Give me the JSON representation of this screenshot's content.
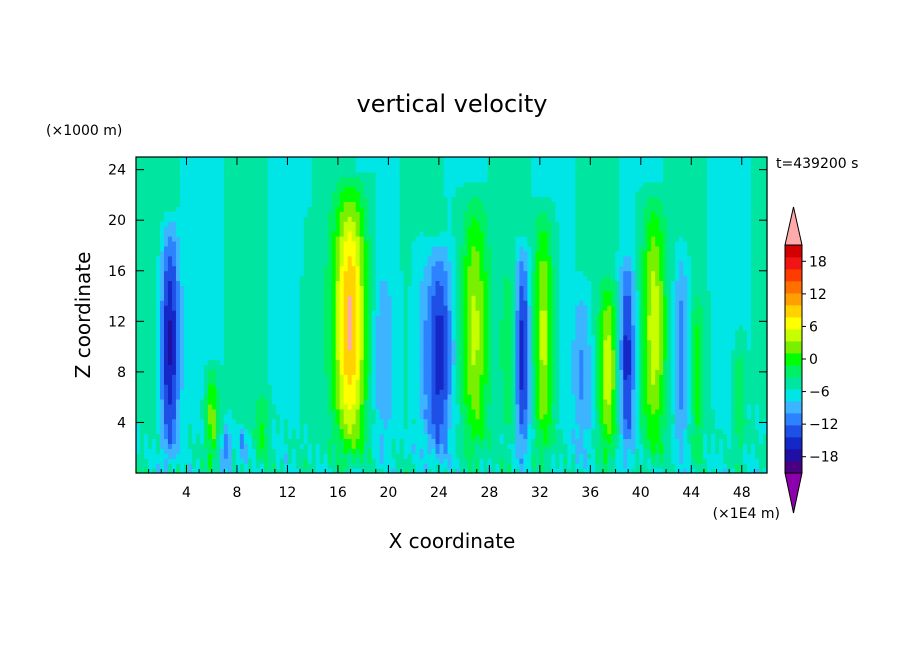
{
  "chart_data": {
    "type": "heatmap",
    "title": "vertical velocity",
    "time_label": "t=439200 s",
    "xlabel": "X coordinate",
    "ylabel": "Z coordinate",
    "x_unit": "(×1E4 m)",
    "y_unit": "(×1000 m)",
    "xlim": [
      0,
      50
    ],
    "ylim": [
      0,
      25
    ],
    "x_ticks": [
      4,
      8,
      12,
      16,
      20,
      24,
      28,
      32,
      36,
      40,
      44,
      48
    ],
    "y_ticks": [
      4,
      8,
      12,
      16,
      20,
      24
    ],
    "colorbar": {
      "min": -21,
      "max": 21,
      "step": 3,
      "tick_labels": [
        "18",
        "12",
        "6",
        "0",
        "−6",
        "−12",
        "−18"
      ],
      "tick_values": [
        18,
        12,
        6,
        0,
        -6,
        -12,
        -18
      ],
      "colors": [
        "#4b0082",
        "#1f0fa3",
        "#1428c8",
        "#1e50e6",
        "#2d82ff",
        "#3cb4ff",
        "#00e6e6",
        "#00e6a0",
        "#00f064",
        "#00ff00",
        "#78f000",
        "#c8ff00",
        "#ffff00",
        "#ffd200",
        "#ffa000",
        "#ff7000",
        "#ff3c00",
        "#f01414",
        "#d20000"
      ],
      "under_color": "#8b00aa",
      "over_color": "#ffaaaa"
    },
    "updrafts": [
      {
        "x": 17.0,
        "amp": 21,
        "top": 24,
        "width": 1.3
      },
      {
        "x": 26.8,
        "amp": 14,
        "top": 23,
        "width": 1.1
      },
      {
        "x": 32.3,
        "amp": 14,
        "top": 22,
        "width": 0.8
      },
      {
        "x": 37.4,
        "amp": 13,
        "top": 16,
        "width": 0.7
      },
      {
        "x": 41.0,
        "amp": 15,
        "top": 23,
        "width": 1.0
      },
      {
        "x": 29.6,
        "amp": 4,
        "top": 18,
        "width": 0.7
      },
      {
        "x": 13.8,
        "amp": 3,
        "top": 21,
        "width": 0.7
      },
      {
        "x": 6.0,
        "amp": 11,
        "top": 9,
        "width": 0.5
      },
      {
        "x": 10.0,
        "amp": 6,
        "top": 7,
        "width": 0.5
      },
      {
        "x": 44.5,
        "amp": 7,
        "top": 15,
        "width": 0.5
      },
      {
        "x": 47.8,
        "amp": 6,
        "top": 12,
        "width": 0.5
      },
      {
        "x": 2.0,
        "amp": 3,
        "top": 25,
        "width": 0.8
      }
    ],
    "downdrafts": [
      {
        "x": 2.6,
        "amp": 18,
        "top": 21,
        "width": 0.8
      },
      {
        "x": 24.0,
        "amp": 14,
        "top": 19,
        "width": 1.0
      },
      {
        "x": 30.6,
        "amp": 15,
        "top": 19,
        "width": 0.6
      },
      {
        "x": 38.9,
        "amp": 13,
        "top": 18,
        "width": 0.6
      },
      {
        "x": 35.4,
        "amp": 7,
        "top": 16,
        "width": 0.8
      },
      {
        "x": 43.2,
        "amp": 9,
        "top": 19,
        "width": 0.6
      },
      {
        "x": 19.6,
        "amp": 5,
        "top": 17,
        "width": 0.8
      },
      {
        "x": 7.2,
        "amp": 9,
        "top": 4,
        "width": 0.4
      },
      {
        "x": 8.4,
        "amp": 6,
        "top": 4,
        "width": 0.4
      },
      {
        "x": 22.6,
        "amp": 4,
        "top": 20,
        "width": 0.8
      }
    ]
  }
}
